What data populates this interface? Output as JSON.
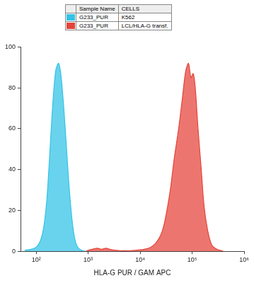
{
  "chart_data": {
    "type": "area",
    "xlabel": "HLA-G PUR / GAM APC",
    "legend_header": [
      "Sample Name",
      "CELLS"
    ],
    "log": "x",
    "grid": false,
    "xlim": [
      50,
      1000000
    ],
    "xticks": [
      {
        "value": 100,
        "label": "10²"
      },
      {
        "value": 1000,
        "label": "10³"
      },
      {
        "value": 10000,
        "label": "10⁴"
      },
      {
        "value": 100000,
        "label": "10⁵"
      },
      {
        "value": 1000000,
        "label": "10⁶"
      }
    ],
    "ylim": [
      0,
      100
    ],
    "yticks": [
      0,
      20,
      40,
      60,
      80,
      100
    ],
    "series": [
      {
        "sample": "G233_PUR",
        "name": "K562",
        "color": "#33c3e6",
        "x": [
          60,
          80,
          100,
          120,
          140,
          160,
          180,
          200,
          220,
          240,
          270,
          300,
          340,
          380,
          420,
          470,
          520,
          580,
          650,
          750,
          900
        ],
        "values": [
          0.5,
          1,
          2,
          5,
          12,
          25,
          45,
          65,
          80,
          89,
          92,
          86,
          70,
          52,
          35,
          20,
          10,
          4,
          1.5,
          0.5,
          0
        ]
      },
      {
        "sample": "G233_PUR",
        "name": "LCL/HLA-G transf.",
        "color": "#e5443a",
        "x": [
          900,
          1000,
          1200,
          1500,
          1800,
          2200,
          2600,
          3500,
          5000,
          8000,
          12000,
          16000,
          20000,
          25000,
          30000,
          38000,
          45000,
          55000,
          65000,
          75000,
          85000,
          95000,
          105000,
          115000,
          130000,
          150000,
          170000,
          200000,
          240000,
          300000,
          400000
        ],
        "values": [
          0,
          0.5,
          1,
          1.5,
          1,
          1.5,
          1,
          0.5,
          0.3,
          0.5,
          1,
          2,
          4,
          8,
          15,
          30,
          45,
          60,
          75,
          88,
          92,
          85,
          87,
          80,
          60,
          40,
          22,
          10,
          3,
          1,
          0
        ]
      }
    ]
  }
}
